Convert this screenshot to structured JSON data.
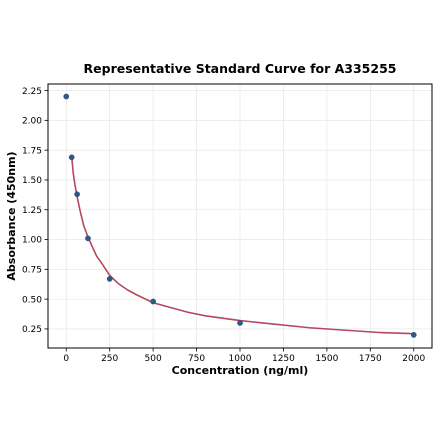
{
  "chart_data": {
    "type": "scatter",
    "title": "Representative Standard Curve for A335255",
    "xlabel": "Concentration (ng/ml)",
    "ylabel": "Absorbance (450nm)",
    "xlim": [
      -105,
      2105
    ],
    "ylim": [
      0.09,
      2.305
    ],
    "xticks": [
      0,
      250,
      500,
      750,
      1000,
      1250,
      1500,
      1750,
      2000
    ],
    "yticks": [
      0.25,
      0.5,
      0.75,
      1.0,
      1.25,
      1.5,
      1.75,
      2.0,
      2.25
    ],
    "xtick_labels": [
      "0",
      "250",
      "500",
      "750",
      "1000",
      "1250",
      "1500",
      "1750",
      "2000"
    ],
    "ytick_labels": [
      "0.25",
      "0.50",
      "0.75",
      "1.00",
      "1.25",
      "1.50",
      "1.75",
      "2.00",
      "2.25"
    ],
    "grid": true,
    "series": [
      {
        "type": "scatter",
        "x": [
          0,
          31.25,
          62.5,
          125,
          250,
          500,
          1000,
          2000
        ],
        "y": [
          2.2,
          1.69,
          1.38,
          1.01,
          0.67,
          0.48,
          0.3,
          0.2
        ],
        "color": "#2c5a87"
      },
      {
        "type": "line",
        "x": [
          31.25,
          40,
          50,
          62.5,
          80,
          100,
          125,
          150,
          175,
          200,
          250,
          300,
          350,
          400,
          500,
          600,
          700,
          800,
          1000,
          1200,
          1400,
          1600,
          1800,
          2000
        ],
        "y": [
          1.7,
          1.56,
          1.46,
          1.36,
          1.24,
          1.12,
          1.02,
          0.94,
          0.86,
          0.81,
          0.7,
          0.63,
          0.58,
          0.54,
          0.47,
          0.43,
          0.39,
          0.36,
          0.32,
          0.29,
          0.26,
          0.24,
          0.22,
          0.21
        ],
        "color": "#b5485f"
      }
    ]
  }
}
